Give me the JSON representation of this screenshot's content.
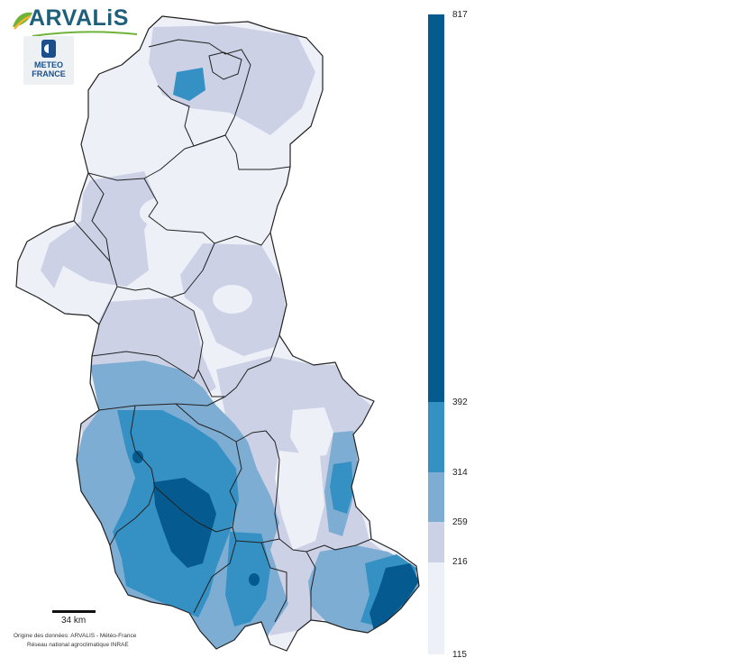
{
  "logos": {
    "arvalis": "ARVALiS",
    "meteo_line1": "METEO",
    "meteo_line2": "FRANCE"
  },
  "scale": {
    "label": "34 km"
  },
  "credits": {
    "line1": "Origine des données: ARVALIS - Météo-France",
    "line2": "Réseau national agroclimatique INRAE"
  },
  "legend": {
    "classes": [
      {
        "from": 115,
        "to": 216,
        "color": "#eef0f7"
      },
      {
        "from": 216,
        "to": 259,
        "color": "#cdd1e6"
      },
      {
        "from": 259,
        "to": 314,
        "color": "#7eadd3"
      },
      {
        "from": 314,
        "to": 392,
        "color": "#3590c4"
      },
      {
        "from": 392,
        "to": 817,
        "color": "#055b8f"
      }
    ],
    "ticks": [
      "817",
      "392",
      "314",
      "259",
      "216",
      "115"
    ]
  },
  "colors": {
    "boundary": "#222222",
    "class1": "#eef0f7",
    "class2": "#cdd1e6",
    "class3": "#7eadd3",
    "class4": "#3590c4",
    "class5": "#055b8f"
  }
}
